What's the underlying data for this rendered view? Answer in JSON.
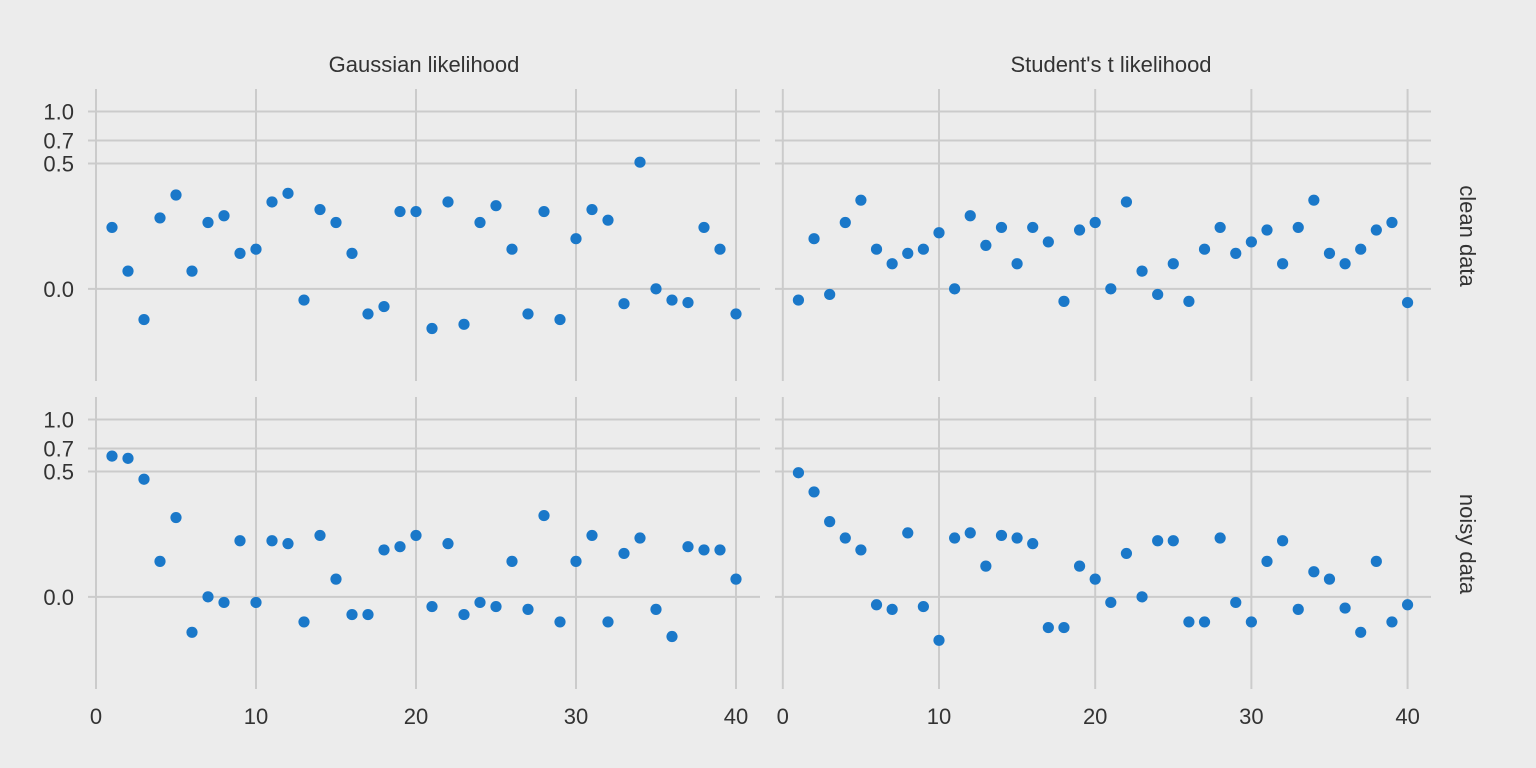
{
  "chart_data": {
    "type": "scatter",
    "facet_columns": [
      "Gaussian likelihood",
      "Student's t likelihood"
    ],
    "facet_rows": [
      "clean data",
      "noisy data"
    ],
    "x_ticks": [
      0,
      10,
      20,
      30,
      40
    ],
    "x_range": [
      -0.5,
      41.5
    ],
    "y_ticks": [
      0.0,
      0.5,
      0.7,
      1.0
    ],
    "y_tick_labels": [
      "0.0",
      "0.5",
      "0.7",
      "1.0"
    ],
    "y_range": [
      -0.27,
      1.27
    ],
    "y_scale": "sqrt (signed)",
    "grid": true,
    "point_color": "#1a78c9",
    "background": "#ececec",
    "grid_color": "#cbcbcb",
    "panels": [
      {
        "column": "Gaussian likelihood",
        "row": "clean data",
        "x": [
          1,
          2,
          3,
          4,
          5,
          6,
          7,
          8,
          9,
          10,
          11,
          12,
          13,
          14,
          15,
          16,
          17,
          18,
          19,
          20,
          21,
          22,
          23,
          24,
          25,
          26,
          27,
          28,
          29,
          30,
          31,
          32,
          33,
          34,
          35,
          36,
          37,
          38,
          39,
          40
        ],
        "y": [
          0.12,
          0.01,
          -0.03,
          0.16,
          0.28,
          0.01,
          0.14,
          0.17,
          0.04,
          0.05,
          0.24,
          0.29,
          -0.004,
          0.2,
          0.14,
          0.04,
          -0.02,
          -0.01,
          0.19,
          0.19,
          -0.05,
          0.24,
          -0.04,
          0.14,
          0.22,
          0.05,
          -0.02,
          0.19,
          -0.03,
          0.08,
          0.2,
          0.15,
          -0.007,
          0.51,
          0.0,
          -0.004,
          -0.006,
          0.12,
          0.05,
          -0.02
        ],
        "color": "#1a78c9"
      },
      {
        "column": "Student's t likelihood",
        "row": "clean data",
        "x": [
          1,
          2,
          3,
          4,
          5,
          6,
          7,
          8,
          9,
          10,
          11,
          12,
          13,
          14,
          15,
          16,
          17,
          18,
          19,
          20,
          21,
          22,
          23,
          24,
          25,
          26,
          27,
          28,
          29,
          30,
          31,
          32,
          33,
          34,
          35,
          36,
          37,
          38,
          39,
          40
        ],
        "y": [
          -0.004,
          0.08,
          -0.001,
          0.14,
          0.25,
          0.05,
          0.02,
          0.04,
          0.05,
          0.1,
          0.0,
          0.17,
          0.06,
          0.12,
          0.02,
          0.12,
          0.07,
          -0.005,
          0.11,
          0.14,
          0.0,
          0.24,
          0.01,
          -0.001,
          0.02,
          -0.005,
          0.05,
          0.12,
          0.04,
          0.07,
          0.11,
          0.02,
          0.12,
          0.25,
          0.04,
          0.02,
          0.05,
          0.11,
          0.14,
          -0.006
        ],
        "color": "#1a78c9"
      },
      {
        "column": "Gaussian likelihood",
        "row": "noisy data",
        "x": [
          1,
          2,
          3,
          4,
          5,
          6,
          7,
          8,
          9,
          10,
          11,
          12,
          13,
          14,
          15,
          16,
          17,
          18,
          19,
          20,
          21,
          22,
          23,
          24,
          25,
          26,
          27,
          28,
          29,
          30,
          31,
          32,
          33,
          34,
          35,
          36,
          37,
          38,
          39,
          40
        ],
        "y": [
          0.63,
          0.61,
          0.44,
          0.04,
          0.2,
          -0.04,
          0.0,
          -0.001,
          0.1,
          -0.001,
          0.1,
          0.09,
          -0.02,
          0.12,
          0.01,
          -0.01,
          -0.01,
          0.07,
          0.08,
          0.12,
          -0.003,
          0.09,
          -0.01,
          -0.001,
          -0.003,
          0.04,
          -0.005,
          0.21,
          -0.02,
          0.04,
          0.12,
          -0.02,
          0.06,
          0.11,
          -0.005,
          -0.05,
          0.08,
          0.07,
          0.07,
          0.01
        ],
        "color": "#1a78c9"
      },
      {
        "column": "Student's t likelihood",
        "row": "noisy data",
        "x": [
          1,
          2,
          3,
          4,
          5,
          6,
          7,
          8,
          9,
          10,
          11,
          12,
          13,
          14,
          15,
          16,
          17,
          18,
          19,
          20,
          21,
          22,
          23,
          24,
          25,
          26,
          27,
          28,
          29,
          30,
          31,
          32,
          33,
          34,
          35,
          36,
          37,
          38,
          39,
          40
        ],
        "y": [
          0.49,
          0.35,
          0.18,
          0.11,
          0.07,
          -0.002,
          -0.005,
          0.13,
          -0.003,
          -0.06,
          0.11,
          0.13,
          0.03,
          0.12,
          0.11,
          0.09,
          -0.03,
          -0.03,
          0.03,
          0.01,
          -0.001,
          0.06,
          0.0,
          0.1,
          0.1,
          -0.02,
          -0.02,
          0.11,
          -0.001,
          -0.02,
          0.04,
          0.1,
          -0.005,
          0.02,
          0.01,
          -0.004,
          -0.04,
          0.04,
          -0.02,
          -0.002
        ],
        "color": "#1a78c9"
      }
    ]
  }
}
